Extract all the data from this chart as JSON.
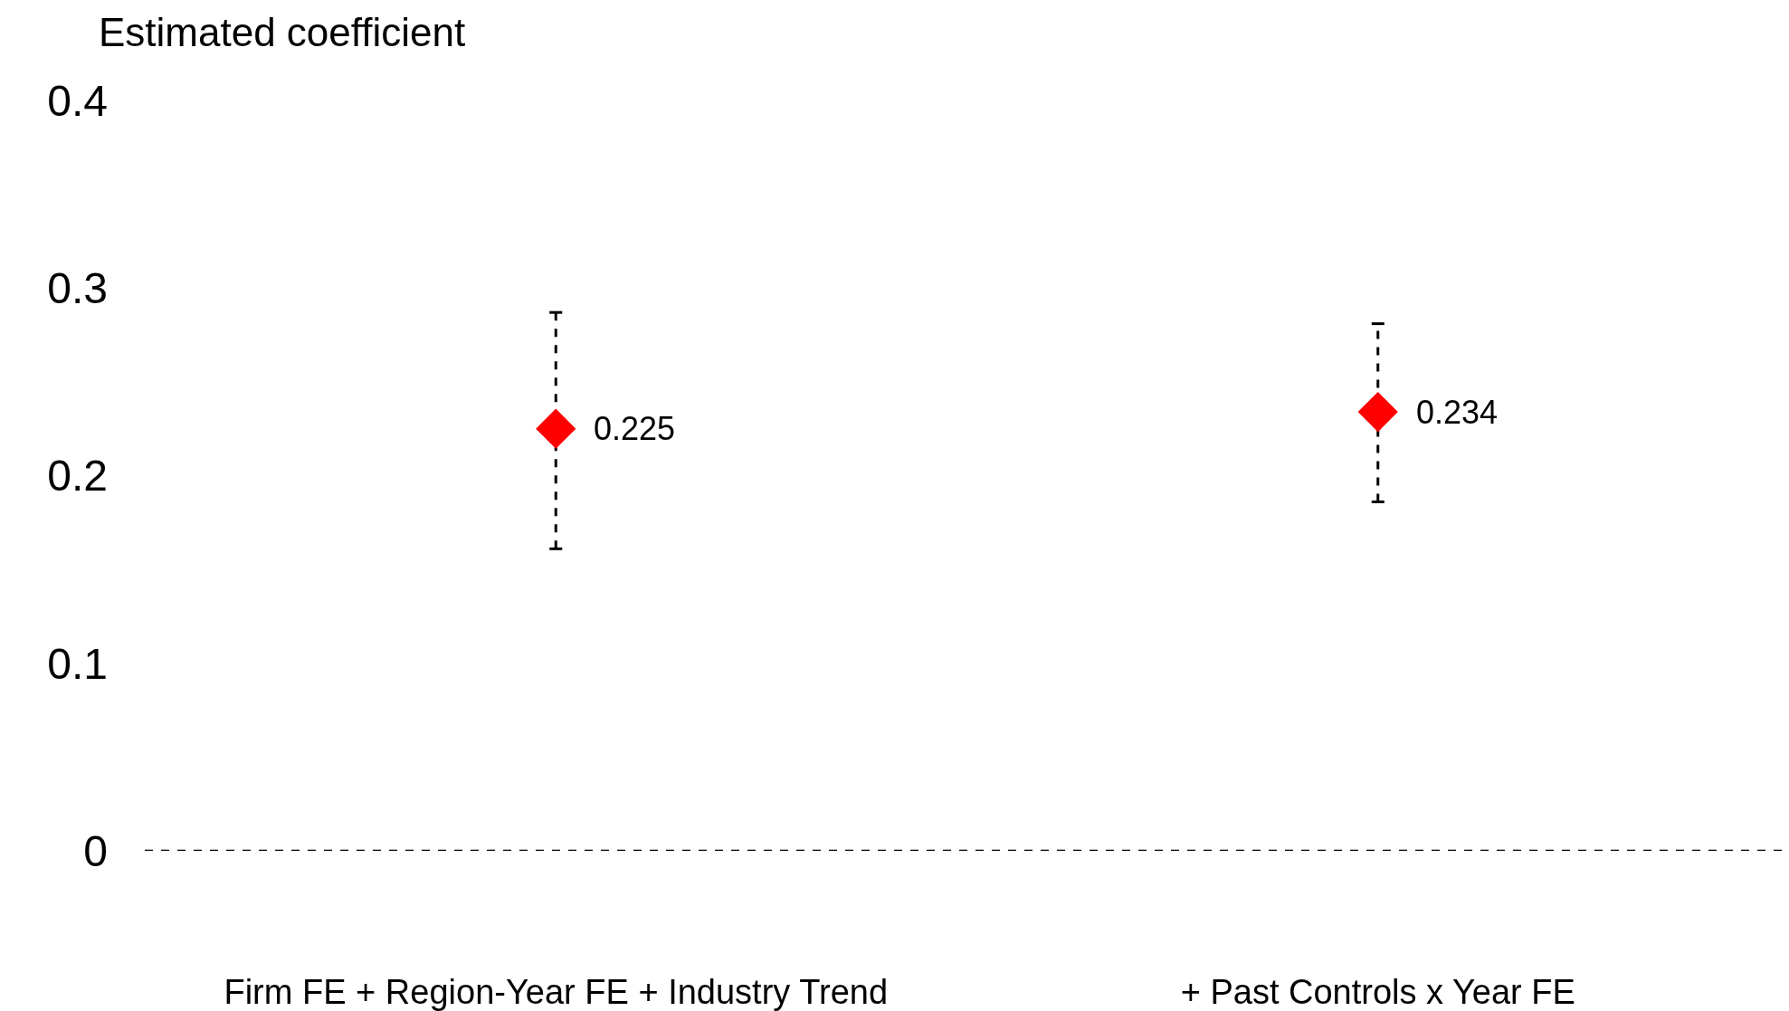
{
  "chart_data": {
    "type": "scatter",
    "ylabel": "Estimated coefficient",
    "categories": [
      "Firm FE + Region-Year FE + Industry Trend",
      "+ Past Controls x Year FE"
    ],
    "values": [
      0.225,
      0.234
    ],
    "errors": [
      [
        0.161,
        0.287
      ],
      [
        0.186,
        0.281
      ]
    ],
    "value_labels": [
      "0.225",
      "0.234"
    ],
    "color": "#ff0000",
    "marker": "diamond",
    "ylim": [
      0,
      0.4
    ],
    "yticks": [
      {
        "value": 0,
        "label": "0"
      },
      0.1,
      0.2,
      0.3,
      0.4
    ],
    "ref_lines": [
      {
        "axis": "y",
        "value": 0,
        "color": "#000000",
        "line_style": "dashed"
      }
    ],
    "legend": false
  }
}
